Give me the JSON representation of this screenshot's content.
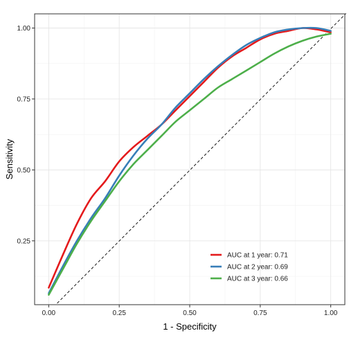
{
  "chart_data": {
    "type": "line",
    "title": "",
    "xlabel": "1 - Specificity",
    "ylabel": "Sensitivity",
    "xlim": [
      -0.05,
      1.05
    ],
    "ylim": [
      0.025,
      1.05
    ],
    "x_ticks": [
      0.0,
      0.25,
      0.5,
      0.75,
      1.0
    ],
    "x_tick_labels": [
      "0.00",
      "0.25",
      "0.50",
      "0.75",
      "1.00"
    ],
    "y_ticks": [
      0.25,
      0.5,
      0.75,
      1.0
    ],
    "y_tick_labels": [
      "0.25",
      "0.50",
      "0.75",
      "1.00"
    ],
    "grid": true,
    "legend_position": "bottom-right",
    "reference_line": {
      "x": [
        0.03,
        1.0
      ],
      "y": [
        0.03,
        1.0
      ],
      "style": "dashed",
      "color": "#000000"
    },
    "series": [
      {
        "name": "AUC at 1 year: 0.71",
        "color": "#E41A1C",
        "x": [
          0.0,
          0.05,
          0.1,
          0.15,
          0.2,
          0.25,
          0.3,
          0.35,
          0.4,
          0.45,
          0.5,
          0.55,
          0.6,
          0.65,
          0.7,
          0.75,
          0.8,
          0.85,
          0.9,
          0.95,
          1.0
        ],
        "y": [
          0.085,
          0.2,
          0.31,
          0.4,
          0.46,
          0.53,
          0.58,
          0.62,
          0.66,
          0.71,
          0.76,
          0.81,
          0.86,
          0.9,
          0.93,
          0.96,
          0.98,
          0.99,
          1.0,
          0.995,
          0.985
        ]
      },
      {
        "name": "AUC at 2 year: 0.69",
        "color": "#377EB8",
        "x": [
          0.0,
          0.05,
          0.1,
          0.15,
          0.2,
          0.25,
          0.3,
          0.35,
          0.4,
          0.45,
          0.5,
          0.55,
          0.6,
          0.65,
          0.7,
          0.75,
          0.8,
          0.85,
          0.9,
          0.95,
          1.0
        ],
        "y": [
          0.065,
          0.16,
          0.25,
          0.33,
          0.4,
          0.48,
          0.55,
          0.61,
          0.66,
          0.72,
          0.77,
          0.82,
          0.865,
          0.905,
          0.94,
          0.965,
          0.985,
          0.995,
          1.0,
          1.0,
          0.99
        ]
      },
      {
        "name": "AUC at 3 year: 0.66",
        "color": "#4DAF4A",
        "x": [
          0.0,
          0.05,
          0.1,
          0.15,
          0.2,
          0.25,
          0.3,
          0.35,
          0.4,
          0.45,
          0.5,
          0.55,
          0.6,
          0.65,
          0.7,
          0.75,
          0.8,
          0.85,
          0.9,
          0.95,
          1.0
        ],
        "y": [
          0.06,
          0.15,
          0.24,
          0.32,
          0.39,
          0.46,
          0.52,
          0.57,
          0.62,
          0.67,
          0.71,
          0.75,
          0.79,
          0.82,
          0.85,
          0.88,
          0.91,
          0.935,
          0.955,
          0.97,
          0.98
        ]
      }
    ]
  }
}
